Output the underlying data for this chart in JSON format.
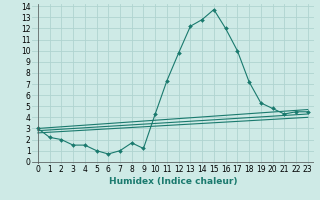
{
  "xlabel": "Humidex (Indice chaleur)",
  "ylabel": "",
  "background_color": "#ceeae6",
  "grid_color": "#b0d4d0",
  "line_color": "#1a7a6e",
  "xlim": [
    -0.5,
    23.5
  ],
  "ylim": [
    -0.2,
    14.2
  ],
  "xticks": [
    0,
    1,
    2,
    3,
    4,
    5,
    6,
    7,
    8,
    9,
    10,
    11,
    12,
    13,
    14,
    15,
    16,
    17,
    18,
    19,
    20,
    21,
    22,
    23
  ],
  "yticks": [
    0,
    1,
    2,
    3,
    4,
    5,
    6,
    7,
    8,
    9,
    10,
    11,
    12,
    13,
    14
  ],
  "series": [
    {
      "x": [
        0,
        1,
        2,
        3,
        4,
        5,
        6,
        7,
        8,
        9,
        10,
        11,
        12,
        13,
        14,
        15,
        16,
        17,
        18,
        19,
        20,
        21,
        22,
        23
      ],
      "y": [
        3.0,
        2.2,
        2.0,
        1.5,
        1.5,
        1.0,
        0.7,
        1.0,
        1.7,
        1.2,
        4.3,
        7.3,
        9.8,
        12.2,
        12.8,
        13.7,
        12.0,
        10.0,
        7.2,
        5.3,
        4.8,
        4.3,
        4.5,
        4.5
      ],
      "has_markers": true
    },
    {
      "x": [
        0,
        23
      ],
      "y": [
        3.0,
        4.7
      ],
      "has_markers": false
    },
    {
      "x": [
        0,
        23
      ],
      "y": [
        2.8,
        4.3
      ],
      "has_markers": false
    },
    {
      "x": [
        0,
        23
      ],
      "y": [
        2.6,
        4.0
      ],
      "has_markers": false
    }
  ],
  "tick_fontsize": 5.5,
  "xlabel_fontsize": 6.5,
  "xlabel_fontweight": "bold"
}
